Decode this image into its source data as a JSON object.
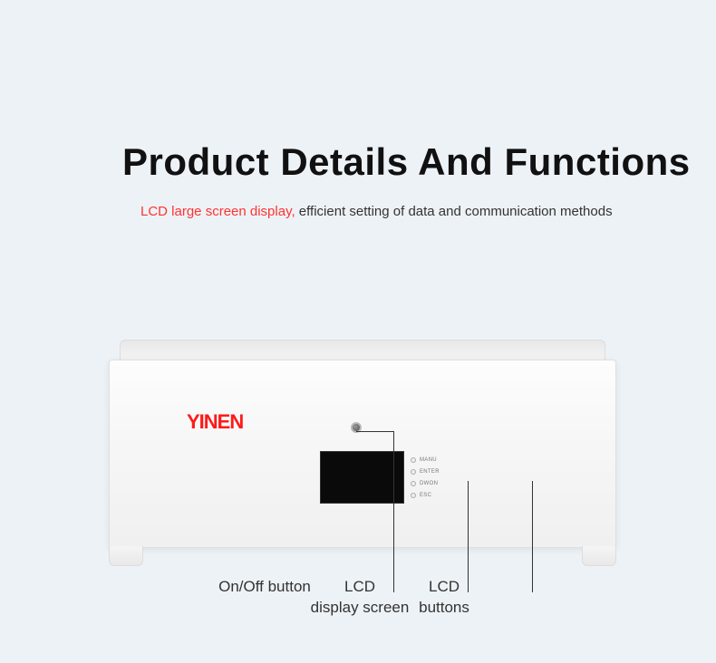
{
  "title": "Product Details And Functions",
  "subtitle_highlight": "LCD large screen display,",
  "subtitle_rest": " efficient setting of data and communication methods",
  "logo": "YINEN",
  "buttons": {
    "b1": "MANU",
    "b2": "ENTER",
    "b3": "DWON",
    "b4": "ESC"
  },
  "callouts": {
    "onoff": "On/Off button",
    "lcd_screen": "LCD\ndisplay screen",
    "lcd_buttons": "LCD\nbuttons"
  },
  "colors": {
    "background": "#edf2f6",
    "highlight": "#ff3333",
    "logo": "#ff1a1a",
    "text": "#333333",
    "lcd": "#0a0a0a"
  }
}
